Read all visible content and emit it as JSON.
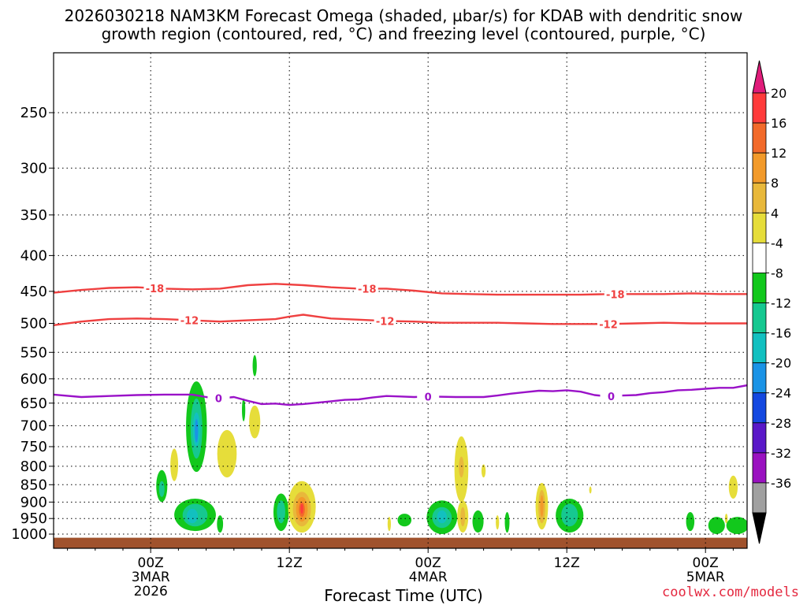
{
  "title_line1": "2026030218 NAM3KM Forecast Omega (shaded, µbar/s) for KDAB with dendritic snow",
  "title_line2": "growth region (contoured, red, °C) and freezing level (contoured, purple, °C)",
  "credit": "coolwx.com/models",
  "chart_data": {
    "type": "heatmap",
    "xlabel": "Forecast Time (UTC)",
    "ylabel": "",
    "y_scale": "log-pressure (hPa), inverted",
    "ylim": [
      1030,
      200
    ],
    "xlim_hours": [
      -7,
      43
    ],
    "grid": true,
    "y_ticks": [
      250,
      300,
      350,
      400,
      450,
      500,
      550,
      600,
      650,
      700,
      750,
      800,
      850,
      900,
      950,
      1000
    ],
    "x_ticks": [
      {
        "hour": 0,
        "labels": [
          "00Z",
          "3MAR",
          "2026"
        ]
      },
      {
        "hour": 10,
        "labels": [
          "12Z"
        ]
      },
      {
        "hour": 20,
        "labels": [
          "00Z",
          "4MAR"
        ]
      },
      {
        "hour": 30,
        "labels": [
          "12Z"
        ]
      },
      {
        "hour": 40,
        "labels": [
          "00Z",
          "5MAR"
        ]
      }
    ],
    "colorbar": {
      "labels": [
        "20",
        "16",
        "12",
        "8",
        "4",
        "-4",
        "-8",
        "-12",
        "-16",
        "-20",
        "-24",
        "-28",
        "-32",
        "-36"
      ],
      "colors": [
        "#ff3b3b",
        "#f26a2a",
        "#f29a2a",
        "#e8b83b",
        "#e6dd3a",
        "#ffffff",
        "#12c81c",
        "#16c890",
        "#12c0c0",
        "#1a93e6",
        "#1448e0",
        "#5a18c8",
        "#9a12c0",
        "#a0a0a0"
      ],
      "top_arrow_color": "#e01c7a",
      "bottom_arrow_color": "#000000"
    },
    "contours": [
      {
        "label": "-18",
        "color": "#ef4040",
        "points": [
          [
            -7,
            452
          ],
          [
            -5,
            448
          ],
          [
            -3,
            445
          ],
          [
            -1,
            444
          ],
          [
            1,
            446
          ],
          [
            3,
            447
          ],
          [
            5,
            446
          ],
          [
            7,
            441
          ],
          [
            9,
            439
          ],
          [
            11,
            441
          ],
          [
            13,
            444
          ],
          [
            15,
            446
          ],
          [
            17,
            446
          ],
          [
            19,
            449
          ],
          [
            21,
            453
          ],
          [
            23,
            454
          ],
          [
            25,
            455
          ],
          [
            27,
            455
          ],
          [
            29,
            455
          ],
          [
            31,
            455
          ],
          [
            33,
            454
          ],
          [
            35,
            454
          ],
          [
            37,
            454
          ],
          [
            39,
            453
          ],
          [
            41,
            454
          ],
          [
            43,
            454
          ]
        ],
        "label_hours": [
          0.3,
          15.6,
          33.5
        ]
      },
      {
        "label": "-12",
        "color": "#ef4040",
        "points": [
          [
            -7,
            503
          ],
          [
            -5,
            497
          ],
          [
            -3,
            493
          ],
          [
            -1,
            492
          ],
          [
            1,
            493
          ],
          [
            3,
            495
          ],
          [
            5,
            497
          ],
          [
            7,
            495
          ],
          [
            9,
            493
          ],
          [
            10,
            489
          ],
          [
            11,
            486
          ],
          [
            12,
            489
          ],
          [
            13,
            492
          ],
          [
            15,
            494
          ],
          [
            17,
            496
          ],
          [
            19,
            497
          ],
          [
            21,
            499
          ],
          [
            23,
            499
          ],
          [
            25,
            499
          ],
          [
            27,
            500
          ],
          [
            29,
            501
          ],
          [
            31,
            501
          ],
          [
            33,
            501
          ],
          [
            35,
            500
          ],
          [
            37,
            499
          ],
          [
            39,
            500
          ],
          [
            41,
            500
          ],
          [
            43,
            500
          ]
        ],
        "label_hours": [
          2.8,
          16.9,
          33.0
        ]
      },
      {
        "label": "0",
        "color": "#9a12c8",
        "points": [
          [
            -7,
            632
          ],
          [
            -5,
            637
          ],
          [
            -3,
            635
          ],
          [
            -1,
            633
          ],
          [
            1,
            632
          ],
          [
            3,
            632
          ],
          [
            4,
            637
          ],
          [
            5,
            640
          ],
          [
            6,
            637
          ],
          [
            7,
            645
          ],
          [
            8,
            652
          ],
          [
            9,
            651
          ],
          [
            10,
            654
          ],
          [
            11,
            652
          ],
          [
            12,
            649
          ],
          [
            13,
            646
          ],
          [
            14,
            643
          ],
          [
            15,
            642
          ],
          [
            16,
            638
          ],
          [
            17,
            635
          ],
          [
            18,
            636
          ],
          [
            19,
            637
          ],
          [
            20,
            636
          ],
          [
            22,
            637
          ],
          [
            24,
            637
          ],
          [
            25,
            634
          ],
          [
            26,
            630
          ],
          [
            27,
            627
          ],
          [
            28,
            624
          ],
          [
            29,
            625
          ],
          [
            30,
            623
          ],
          [
            31,
            626
          ],
          [
            32,
            633
          ],
          [
            33,
            636
          ],
          [
            34,
            634
          ],
          [
            35,
            633
          ],
          [
            36,
            629
          ],
          [
            37,
            627
          ],
          [
            38,
            623
          ],
          [
            39,
            622
          ],
          [
            40,
            620
          ],
          [
            41,
            618
          ],
          [
            42,
            618
          ],
          [
            43,
            613
          ]
        ],
        "label_hours": [
          4.9,
          20.0,
          33.2
        ]
      }
    ],
    "blobs": [
      {
        "hour": 3.3,
        "p": 705,
        "hw": 0.75,
        "p_top": 605,
        "p_bot": 815,
        "level": -8
      },
      {
        "hour": 3.3,
        "p": 705,
        "hw": 0.42,
        "p_top": 640,
        "p_bot": 780,
        "level": -12
      },
      {
        "hour": 3.3,
        "p": 705,
        "hw": 0.26,
        "p_top": 670,
        "p_bot": 750,
        "level": -16
      },
      {
        "hour": 3.3,
        "p": 710,
        "hw": 0.12,
        "p_top": 685,
        "p_bot": 740,
        "level": -20
      },
      {
        "hour": 1.7,
        "p": 795,
        "hw": 0.28,
        "p_top": 755,
        "p_bot": 840,
        "level": 4
      },
      {
        "hour": 5.5,
        "p": 780,
        "hw": 0.7,
        "p_top": 710,
        "p_bot": 830,
        "level": 4
      },
      {
        "hour": 7.5,
        "p": 690,
        "hw": 0.4,
        "p_top": 655,
        "p_bot": 730,
        "level": 4
      },
      {
        "hour": 7.5,
        "p": 575,
        "hw": 0.15,
        "p_top": 555,
        "p_bot": 595,
        "level": -8
      },
      {
        "hour": 6.7,
        "p": 665,
        "hw": 0.12,
        "p_top": 640,
        "p_bot": 690,
        "level": -8
      },
      {
        "hour": 0.8,
        "p": 860,
        "hw": 0.4,
        "p_top": 810,
        "p_bot": 900,
        "level": -8
      },
      {
        "hour": 0.8,
        "p": 865,
        "hw": 0.2,
        "p_top": 840,
        "p_bot": 885,
        "level": -12
      },
      {
        "hour": 3.2,
        "p": 935,
        "hw": 1.5,
        "p_top": 890,
        "p_bot": 990,
        "level": -8
      },
      {
        "hour": 3.2,
        "p": 940,
        "hw": 0.9,
        "p_top": 905,
        "p_bot": 975,
        "level": -12
      },
      {
        "hour": 3.0,
        "p": 945,
        "hw": 0.4,
        "p_top": 920,
        "p_bot": 965,
        "level": -16
      },
      {
        "hour": 5.0,
        "p": 965,
        "hw": 0.22,
        "p_top": 940,
        "p_bot": 995,
        "level": -8
      },
      {
        "hour": 9.4,
        "p": 925,
        "hw": 0.55,
        "p_top": 875,
        "p_bot": 990,
        "level": -8
      },
      {
        "hour": 9.4,
        "p": 925,
        "hw": 0.3,
        "p_top": 895,
        "p_bot": 965,
        "level": -12
      },
      {
        "hour": 10.9,
        "p": 920,
        "hw": 1.0,
        "p_top": 840,
        "p_bot": 995,
        "level": 4
      },
      {
        "hour": 10.9,
        "p": 920,
        "hw": 0.65,
        "p_top": 870,
        "p_bot": 975,
        "level": 8
      },
      {
        "hour": 10.9,
        "p": 920,
        "hw": 0.42,
        "p_top": 885,
        "p_bot": 960,
        "level": 12
      },
      {
        "hour": 10.9,
        "p": 920,
        "hw": 0.22,
        "p_top": 900,
        "p_bot": 945,
        "level": 16
      },
      {
        "hour": 10.9,
        "p": 918,
        "hw": 0.1,
        "p_top": 905,
        "p_bot": 935,
        "level": 20
      },
      {
        "hour": 17.2,
        "p": 965,
        "hw": 0.12,
        "p_top": 945,
        "p_bot": 990,
        "level": 4
      },
      {
        "hour": 18.3,
        "p": 955,
        "hw": 0.5,
        "p_top": 935,
        "p_bot": 975,
        "level": -8
      },
      {
        "hour": 21.0,
        "p": 945,
        "hw": 1.1,
        "p_top": 895,
        "p_bot": 1000,
        "level": -8
      },
      {
        "hour": 21.0,
        "p": 945,
        "hw": 0.7,
        "p_top": 915,
        "p_bot": 980,
        "level": -12
      },
      {
        "hour": 21.0,
        "p": 945,
        "hw": 0.35,
        "p_top": 925,
        "p_bot": 965,
        "level": -16
      },
      {
        "hour": 22.4,
        "p": 800,
        "hw": 0.5,
        "p_top": 725,
        "p_bot": 900,
        "level": 4
      },
      {
        "hour": 22.4,
        "p": 800,
        "hw": 0.18,
        "p_top": 775,
        "p_bot": 830,
        "level": 8
      },
      {
        "hour": 22.5,
        "p": 940,
        "hw": 0.4,
        "p_top": 895,
        "p_bot": 995,
        "level": 4
      },
      {
        "hour": 22.5,
        "p": 940,
        "hw": 0.17,
        "p_top": 915,
        "p_bot": 975,
        "level": 8
      },
      {
        "hour": 24.0,
        "p": 812,
        "hw": 0.15,
        "p_top": 795,
        "p_bot": 830,
        "level": 4
      },
      {
        "hour": 23.6,
        "p": 960,
        "hw": 0.4,
        "p_top": 925,
        "p_bot": 995,
        "level": -8
      },
      {
        "hour": 25.0,
        "p": 960,
        "hw": 0.12,
        "p_top": 940,
        "p_bot": 985,
        "level": 4
      },
      {
        "hour": 25.7,
        "p": 960,
        "hw": 0.17,
        "p_top": 930,
        "p_bot": 995,
        "level": -8
      },
      {
        "hour": 28.2,
        "p": 905,
        "hw": 0.45,
        "p_top": 845,
        "p_bot": 985,
        "level": 4
      },
      {
        "hour": 28.2,
        "p": 905,
        "hw": 0.25,
        "p_top": 865,
        "p_bot": 965,
        "level": 8
      },
      {
        "hour": 28.2,
        "p": 905,
        "hw": 0.12,
        "p_top": 880,
        "p_bot": 945,
        "level": 12
      },
      {
        "hour": 30.2,
        "p": 935,
        "hw": 1.0,
        "p_top": 890,
        "p_bot": 995,
        "level": -8
      },
      {
        "hour": 30.2,
        "p": 935,
        "hw": 0.6,
        "p_top": 905,
        "p_bot": 975,
        "level": -12
      },
      {
        "hour": 31.7,
        "p": 865,
        "hw": 0.08,
        "p_top": 855,
        "p_bot": 875,
        "level": 4
      },
      {
        "hour": 38.9,
        "p": 960,
        "hw": 0.3,
        "p_top": 930,
        "p_bot": 990,
        "level": -8
      },
      {
        "hour": 40.8,
        "p": 970,
        "hw": 0.6,
        "p_top": 945,
        "p_bot": 1000,
        "level": -8
      },
      {
        "hour": 42.0,
        "p": 855,
        "hw": 0.32,
        "p_top": 825,
        "p_bot": 890,
        "level": 4
      },
      {
        "hour": 42.3,
        "p": 970,
        "hw": 0.8,
        "p_top": 945,
        "p_bot": 1000,
        "level": -8
      },
      {
        "hour": 41.5,
        "p": 950,
        "hw": 0.1,
        "p_top": 935,
        "p_bot": 965,
        "level": 4
      }
    ],
    "terrain": {
      "color": "#a0522d",
      "p_top": 1012
    }
  }
}
